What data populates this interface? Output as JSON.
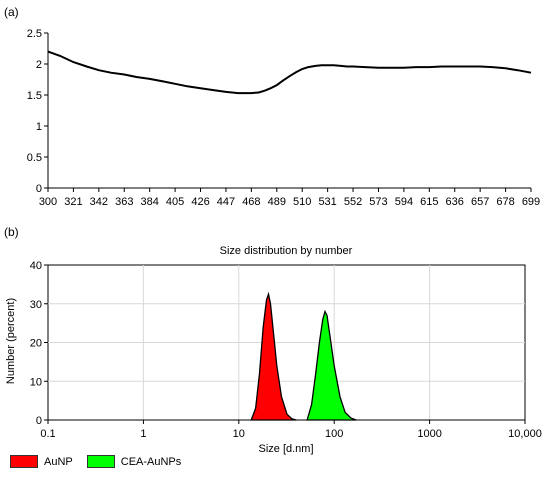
{
  "panel_a_label": "(a)",
  "panel_b_label": "(b)",
  "chart_data": [
    {
      "type": "line",
      "title": "",
      "xlabel": "",
      "ylabel": "",
      "x_ticks": [
        "300",
        "321",
        "342",
        "363",
        "384",
        "405",
        "426",
        "447",
        "468",
        "489",
        "510",
        "531",
        "552",
        "573",
        "594",
        "615",
        "636",
        "657",
        "678",
        "699"
      ],
      "y_ticks": [
        "0",
        "0.5",
        "1",
        "1.5",
        "2",
        "2.5"
      ],
      "xlim": [
        300,
        699
      ],
      "ylim": [
        0,
        2.5
      ],
      "grid": false,
      "series": [
        {
          "color": "#000000",
          "x": [
            300,
            310,
            321,
            332,
            342,
            352,
            363,
            373,
            384,
            395,
            405,
            415,
            426,
            436,
            447,
            457,
            468,
            474,
            479,
            484,
            489,
            494,
            500,
            505,
            510,
            515,
            521,
            526,
            531,
            536,
            542,
            547,
            552,
            562,
            573,
            583,
            594,
            604,
            615,
            625,
            636,
            646,
            657,
            667,
            678,
            688,
            699
          ],
          "y": [
            2.2,
            2.13,
            2.03,
            1.96,
            1.9,
            1.86,
            1.83,
            1.79,
            1.76,
            1.72,
            1.68,
            1.64,
            1.61,
            1.58,
            1.55,
            1.53,
            1.53,
            1.54,
            1.57,
            1.61,
            1.66,
            1.73,
            1.81,
            1.87,
            1.92,
            1.95,
            1.97,
            1.98,
            1.98,
            1.98,
            1.97,
            1.96,
            1.96,
            1.95,
            1.94,
            1.94,
            1.94,
            1.95,
            1.95,
            1.96,
            1.96,
            1.96,
            1.96,
            1.95,
            1.93,
            1.9,
            1.86
          ]
        }
      ]
    },
    {
      "type": "area",
      "title": "Size distribution by number",
      "xlabel": "Size [d.nm]",
      "ylabel": "Number (percent)",
      "x_scale": "log",
      "xlim": [
        0.1,
        10000
      ],
      "ylim": [
        0,
        40
      ],
      "x_ticks": [
        "0.1",
        "1",
        "10",
        "100",
        "1000",
        "10,000"
      ],
      "y_ticks": [
        "0",
        "10",
        "20",
        "30",
        "40"
      ],
      "grid": true,
      "legend": "bottom-left",
      "series": [
        {
          "name": "AuNP",
          "color": "#ff0000",
          "x": [
            13.5,
            15,
            16.5,
            18,
            19.5,
            20.5,
            21.5,
            23,
            25,
            28,
            32,
            36,
            40
          ],
          "y": [
            0,
            3,
            12,
            24,
            31,
            32.5,
            30,
            23,
            14,
            6,
            1.5,
            0.3,
            0
          ]
        },
        {
          "name": "CEA-AuNPs",
          "color": "#00ff00",
          "x": [
            52,
            58,
            64,
            70,
            76,
            80,
            84,
            90,
            100,
            115,
            130,
            150,
            170
          ],
          "y": [
            0,
            4,
            12,
            20,
            26,
            28,
            27,
            22,
            14,
            6,
            2,
            0.5,
            0
          ]
        }
      ]
    }
  ]
}
